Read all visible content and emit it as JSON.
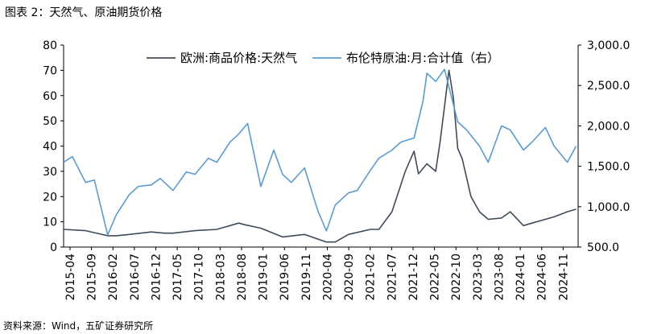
{
  "figure_title": "图表 2：天然气、原油期货价格",
  "source": "资料来源：Wind，五矿证券研究所",
  "chart_data": {
    "type": "line",
    "title": "图表 2：天然气、原油期货价格",
    "xlabel": "",
    "ylabel": "",
    "x_tick_labels": [
      "2015-04",
      "2015-09",
      "2016-02",
      "2016-07",
      "2016-12",
      "2017-05",
      "2017-10",
      "2018-03",
      "2018-08",
      "2019-01",
      "2019-06",
      "2019-11",
      "2020-04",
      "2020-09",
      "2021-02",
      "2021-07",
      "2021-12",
      "2022-05",
      "2022-10",
      "2023-03",
      "2023-08",
      "2024-01",
      "2024-06",
      "2024-11"
    ],
    "y_left": {
      "ylim": [
        0,
        80
      ],
      "ticks": [
        "0",
        "10",
        "20",
        "30",
        "40",
        "50",
        "60",
        "70",
        "80"
      ]
    },
    "y_right": {
      "ylim": [
        500,
        3000
      ],
      "ticks": [
        "500.0",
        "1,000.0",
        "1,500.0",
        "2,000.0",
        "2,500.0",
        "3,000.0"
      ]
    },
    "grid": false,
    "legend_position": "top",
    "series": [
      {
        "name": "欧洲:商品价格:天然气",
        "axis": "left",
        "color": "#404b5a",
        "x": [
          "2015-04",
          "2015-09",
          "2016-02",
          "2016-04",
          "2016-07",
          "2016-12",
          "2017-03",
          "2017-05",
          "2017-10",
          "2018-03",
          "2018-08",
          "2018-09",
          "2019-01",
          "2019-06",
          "2019-11",
          "2020-04",
          "2020-06",
          "2020-09",
          "2021-02",
          "2021-04",
          "2021-07",
          "2021-10",
          "2021-12",
          "2022-01",
          "2022-03",
          "2022-05",
          "2022-06",
          "2022-08",
          "2022-09",
          "2022-10",
          "2022-11",
          "2023-01",
          "2023-03",
          "2023-05",
          "2023-08",
          "2023-10",
          "2024-01",
          "2024-03",
          "2024-06",
          "2024-08",
          "2024-11",
          "2025-01"
        ],
        "y": [
          7.0,
          6.5,
          4.5,
          4.5,
          5.0,
          6.0,
          5.5,
          5.5,
          6.5,
          7.0,
          9.5,
          9.0,
          7.5,
          4.0,
          5.0,
          2.0,
          2.0,
          5.0,
          7.0,
          7.0,
          14.0,
          30.0,
          38.0,
          29.0,
          33.0,
          30.0,
          42.0,
          70.0,
          59.0,
          39.0,
          35.0,
          20.0,
          14.0,
          11.0,
          11.5,
          14.0,
          8.5,
          9.5,
          11.0,
          12.0,
          14.0,
          15.0
        ]
      },
      {
        "name": "布伦特原油:月:合计值（右）",
        "axis": "right",
        "color": "#5b9bd5",
        "x": [
          "2015-04",
          "2015-06",
          "2015-09",
          "2015-11",
          "2016-02",
          "2016-04",
          "2016-07",
          "2016-09",
          "2016-12",
          "2017-02",
          "2017-05",
          "2017-08",
          "2017-10",
          "2018-01",
          "2018-03",
          "2018-06",
          "2018-08",
          "2018-10",
          "2019-01",
          "2019-04",
          "2019-06",
          "2019-08",
          "2019-11",
          "2020-02",
          "2020-04",
          "2020-06",
          "2020-09",
          "2020-11",
          "2021-02",
          "2021-04",
          "2021-07",
          "2021-09",
          "2021-12",
          "2022-02",
          "2022-03",
          "2022-05",
          "2022-07",
          "2022-10",
          "2022-12",
          "2023-03",
          "2023-05",
          "2023-08",
          "2023-10",
          "2024-01",
          "2024-03",
          "2024-06",
          "2024-08",
          "2024-11",
          "2025-01"
        ],
        "y": [
          1550,
          1620,
          1300,
          1330,
          650,
          900,
          1150,
          1250,
          1270,
          1350,
          1200,
          1430,
          1400,
          1600,
          1550,
          1800,
          1900,
          2030,
          1250,
          1700,
          1400,
          1300,
          1480,
          950,
          700,
          1020,
          1170,
          1200,
          1450,
          1600,
          1700,
          1800,
          1850,
          2300,
          2650,
          2550,
          2700,
          2050,
          1950,
          1750,
          1550,
          2000,
          1950,
          1700,
          1800,
          1980,
          1750,
          1550,
          1750
        ]
      }
    ]
  }
}
